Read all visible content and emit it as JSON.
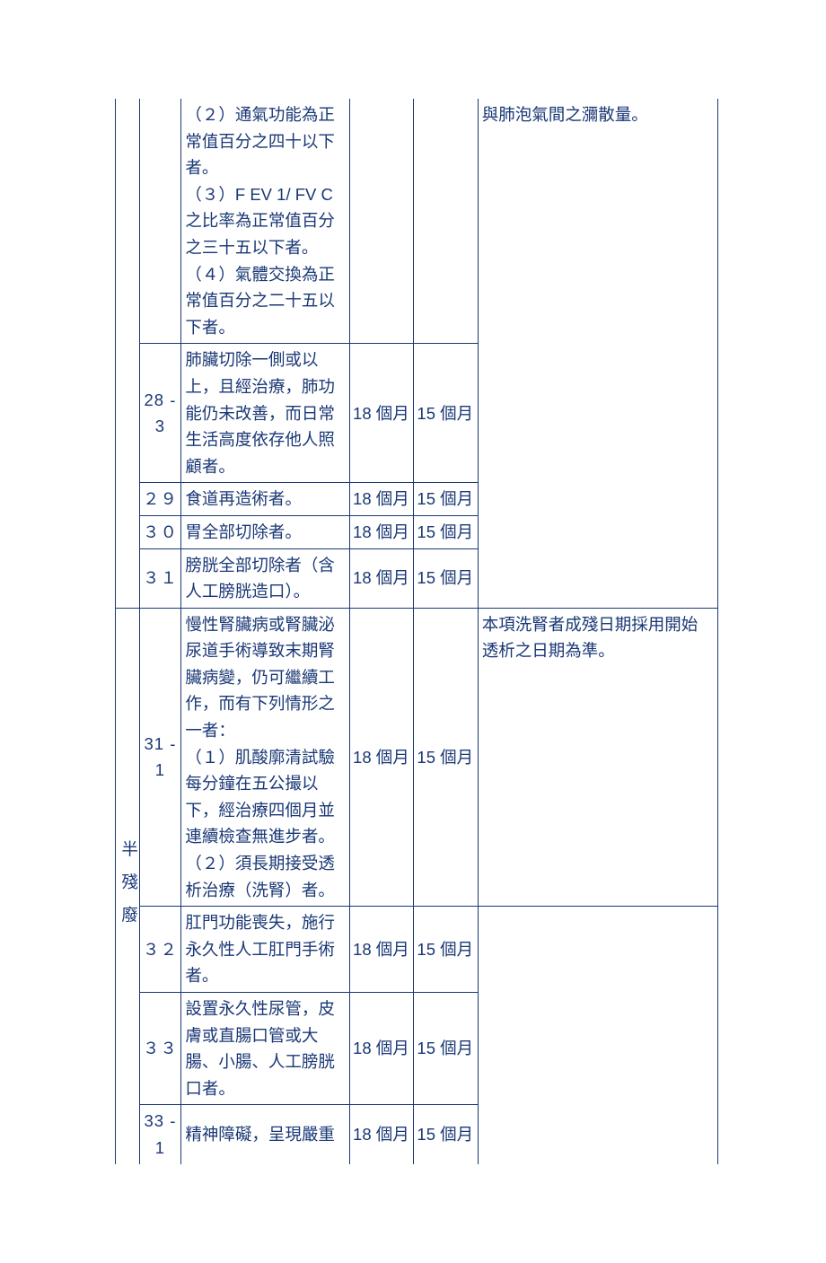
{
  "table": {
    "border_color": "#1a3876",
    "text_color": "#1a3876",
    "font_size": 18.5,
    "rows": [
      {
        "num": "",
        "desc": "（２）通氣功能為正常值百分之四十以下者。\n（３）F EV 1/ FV C之比率為正常值百分之三十五以下者。\n（４）氣體交換為正常值百分之二十五以下者。",
        "m1": "",
        "m2": "",
        "note": "與肺泡氣間之瀰散量。"
      },
      {
        "num": "28 -3",
        "desc": "肺臟切除一側或以上，且經治療，肺功能仍未改善，而日常生活高度依存他人照顧者。",
        "m1": "18 個月",
        "m2": "15 個月"
      },
      {
        "num": "２９",
        "desc": "食道再造術者。",
        "m1": "18 個月",
        "m2": "15 個月"
      },
      {
        "num": "３０",
        "desc": "胃全部切除者。",
        "m1": "18 個月",
        "m2": "15 個月"
      },
      {
        "num": "３１",
        "desc": "膀胱全部切除者（含人工膀胱造口）。",
        "m1": "18 個月",
        "m2": "15 個月"
      },
      {
        "category": "半殘廢",
        "num": "31 -1",
        "desc": "慢性腎臟病或腎臟泌尿道手術導致末期腎臟病變，仍可繼續工作，而有下列情形之一者：\n（１）肌酸廓清試驗每分鐘在五公撮以下，經治療四個月並連續檢查無進步者。\n（２）須長期接受透析治療（洗腎）者。",
        "m1": "18 個月",
        "m2": "15 個月",
        "note": "本項洗腎者成殘日期採用開始透析之日期為準。"
      },
      {
        "num": "３２",
        "desc": "肛門功能喪失，施行永久性人工肛門手術者。",
        "m1": "18 個月",
        "m2": "15 個月"
      },
      {
        "num": "３３",
        "desc": "設置永久性尿管，皮膚或直腸口管或大腸、小腸、人工膀胱口者。",
        "m1": "18 個月",
        "m2": "15 個月"
      },
      {
        "num": "33 -1",
        "desc": "精神障礙，呈現嚴重",
        "m1": "18 個月",
        "m2": "15 個月"
      }
    ]
  }
}
